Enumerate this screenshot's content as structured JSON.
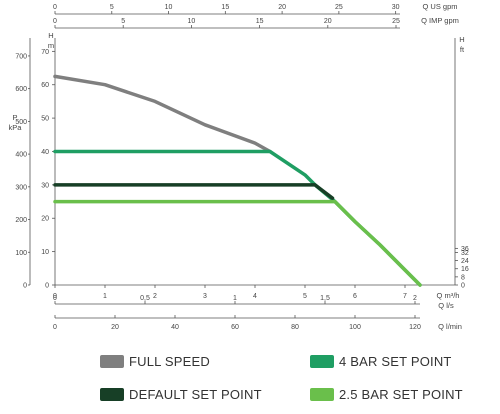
{
  "chart_data": {
    "type": "line",
    "title": "",
    "x_axes": {
      "q_m3h": {
        "label": "Q m³/h",
        "ticks": [
          0,
          1,
          2,
          3,
          4,
          5,
          6,
          7
        ],
        "range": [
          0,
          8
        ]
      },
      "q_ls": {
        "label": "Q l/s",
        "tick_labels": [
          "0",
          "0,5",
          "1",
          "1,5",
          "2"
        ],
        "tick_values": [
          0,
          0.5,
          1,
          1.5,
          2
        ]
      },
      "q_lmin": {
        "label": "Q l/min",
        "ticks": [
          0,
          20,
          40,
          60,
          80,
          100,
          120
        ]
      },
      "q_us_gpm": {
        "label": "Q US gpm",
        "ticks": [
          0,
          5,
          10,
          15,
          20,
          25,
          30
        ]
      },
      "q_imp_gpm": {
        "label": "Q IMP gpm",
        "ticks": [
          0,
          5,
          10,
          15,
          20,
          25
        ]
      }
    },
    "y_axes": {
      "p_kpa": {
        "label_top": "P",
        "label_bottom": "kPa",
        "ticks": [
          0,
          100,
          200,
          300,
          400,
          500,
          600,
          700
        ]
      },
      "h_m": {
        "label_top": "H",
        "label_bottom": "m",
        "ticks": [
          0,
          10,
          20,
          30,
          40,
          50,
          60,
          70
        ],
        "range": [
          0,
          74
        ]
      },
      "h_ft": {
        "label_top": "H",
        "label_bottom": "ft",
        "ticks": [
          0,
          8,
          16,
          24,
          32,
          36
        ]
      }
    },
    "grid": false,
    "series": [
      {
        "name": "FULL SPEED",
        "color": "#7f7f7f",
        "x": [
          0,
          1,
          2,
          3,
          4,
          4.3
        ],
        "y": [
          62.5,
          60,
          55,
          48,
          42.5,
          40
        ]
      },
      {
        "name": "4 BAR SET POINT",
        "color": "#1f9e63",
        "x": [
          0,
          4.3,
          5,
          5.2,
          5.6,
          6,
          6.5,
          7,
          7.3
        ],
        "y": [
          40,
          40,
          33,
          30,
          25,
          19,
          12,
          4.5,
          0
        ]
      },
      {
        "name": "DEFAULT SET POINT",
        "color": "#173f26",
        "x": [
          0,
          5.2,
          5.55
        ],
        "y": [
          30,
          30,
          26
        ]
      },
      {
        "name": "2.5 BAR SET POINT",
        "color": "#6abf4b",
        "x": [
          0,
          5.6,
          6,
          6.5,
          7,
          7.3
        ],
        "y": [
          25,
          25,
          19,
          12,
          4.5,
          0
        ]
      }
    ],
    "legend_placement": "bottom"
  }
}
